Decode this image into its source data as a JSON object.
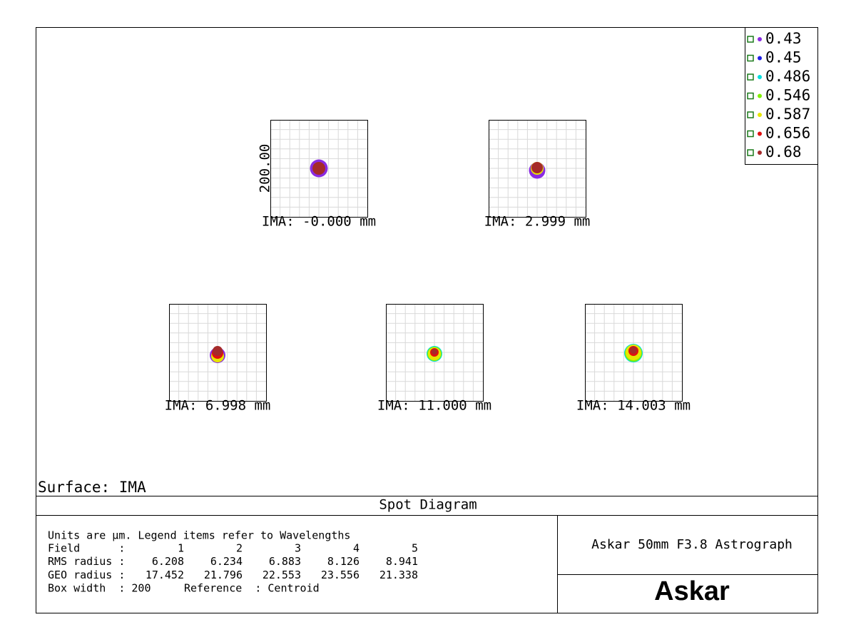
{
  "legend": {
    "items": [
      {
        "label": "0.43",
        "color": "#8a2be2"
      },
      {
        "label": "0.45",
        "color": "#1f1fe6"
      },
      {
        "label": "0.486",
        "color": "#00dede"
      },
      {
        "label": "0.546",
        "color": "#80f000"
      },
      {
        "label": "0.587",
        "color": "#e6e600"
      },
      {
        "label": "0.656",
        "color": "#e01010"
      },
      {
        "label": "0.68",
        "color": "#a52a2a"
      }
    ]
  },
  "plot": {
    "axis_label": "200.00",
    "spots": [
      {
        "label": "IMA: -0.000 mm"
      },
      {
        "label": "IMA: 2.999 mm"
      },
      {
        "label": "IMA: 6.998 mm"
      },
      {
        "label": "IMA: 11.000 mm"
      },
      {
        "label": "IMA: 14.003 mm"
      }
    ]
  },
  "surface": "Surface: IMA",
  "title": "Spot Diagram",
  "info": {
    "note": "Units are µm. Legend items refer to Wavelengths",
    "rows": [
      {
        "label": "Field      :",
        "values": [
          1,
          2,
          3,
          4,
          5
        ]
      },
      {
        "label": "RMS radius :",
        "values": [
          6.208,
          6.234,
          6.883,
          8.126,
          8.941
        ]
      },
      {
        "label": "GEO radius :",
        "values": [
          17.452,
          21.796,
          22.553,
          23.556,
          21.338
        ]
      }
    ],
    "box_width": "Box width  : 200",
    "reference": "Reference  : Centroid"
  },
  "system": "Askar 50mm F3.8 Astrograph",
  "logo": "Askar"
}
